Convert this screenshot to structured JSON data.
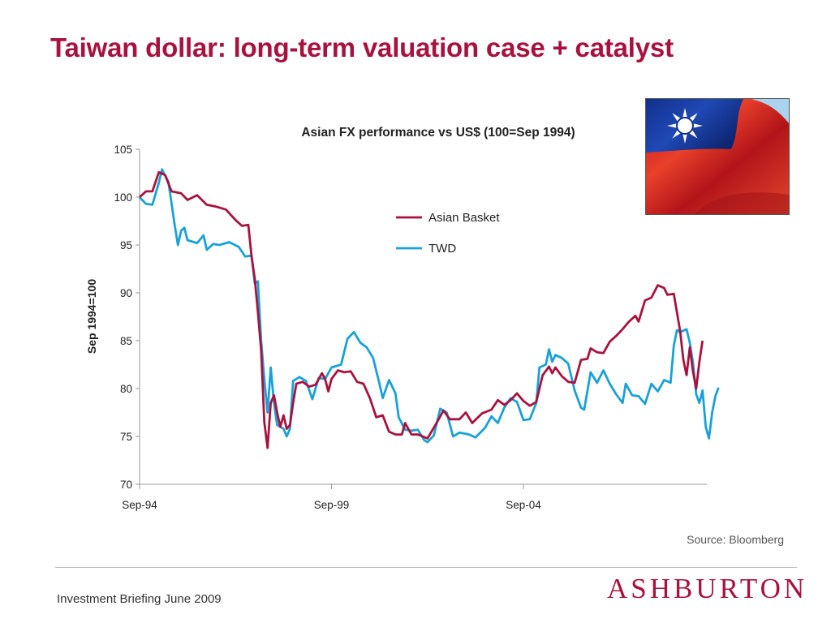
{
  "slide": {
    "title": "Taiwan dollar: long-term valuation case + catalyst",
    "source": "Source: Bloomberg",
    "footer": "Investment Briefing June 2009",
    "logo": "ASHBURTON",
    "accent_color": "#a8123e"
  },
  "flag_image": {
    "icon": "taiwan-flag-icon"
  },
  "chart_data": {
    "type": "line",
    "title": "Asian FX performance vs US$ (100=Sep 1994)",
    "ylabel": "Sep 1994=100",
    "xlabel": "",
    "ylim": [
      70,
      105
    ],
    "yticks": [
      70,
      75,
      80,
      85,
      90,
      95,
      100,
      105
    ],
    "xticks": [
      "Sep-94",
      "Sep-99",
      "Sep-04"
    ],
    "xrange": [
      "1994-09",
      "2009-05"
    ],
    "legend_position": "upper-center",
    "grid": false,
    "series": [
      {
        "name": "Asian Basket",
        "color": "#a8123e",
        "points": [
          [
            "1994-09",
            100
          ],
          [
            "1994-11",
            100.6
          ],
          [
            "1995-01",
            100.6
          ],
          [
            "1995-03",
            102.6
          ],
          [
            "1995-05",
            102.3
          ],
          [
            "1995-07",
            100.6
          ],
          [
            "1995-10",
            100.4
          ],
          [
            "1995-12",
            99.7
          ],
          [
            "1996-03",
            100.2
          ],
          [
            "1996-06",
            99.2
          ],
          [
            "1996-09",
            99.0
          ],
          [
            "1996-12",
            98.7
          ],
          [
            "1997-03",
            97.6
          ],
          [
            "1997-05",
            97.0
          ],
          [
            "1997-07",
            97.1
          ],
          [
            "1997-08",
            93.8
          ],
          [
            "1997-09",
            91.5
          ],
          [
            "1997-10",
            88.0
          ],
          [
            "1997-11",
            84.0
          ],
          [
            "1997-12",
            76.5
          ],
          [
            "1998-01",
            73.8
          ],
          [
            "1998-02",
            78.5
          ],
          [
            "1998-03",
            79.3
          ],
          [
            "1998-04",
            77.5
          ],
          [
            "1998-05",
            76.0
          ],
          [
            "1998-06",
            77.2
          ],
          [
            "1998-07",
            75.8
          ],
          [
            "1998-08",
            76.2
          ],
          [
            "1998-09",
            78.5
          ],
          [
            "1998-10",
            80.5
          ],
          [
            "1998-12",
            80.7
          ],
          [
            "1999-02",
            80.2
          ],
          [
            "1999-04",
            80.4
          ],
          [
            "1999-06",
            81.6
          ],
          [
            "1999-07",
            81.0
          ],
          [
            "1999-08",
            79.7
          ],
          [
            "1999-09",
            81.0
          ],
          [
            "1999-11",
            81.9
          ],
          [
            "2000-01",
            81.7
          ],
          [
            "2000-03",
            81.8
          ],
          [
            "2000-05",
            80.7
          ],
          [
            "2000-07",
            80.5
          ],
          [
            "2000-09",
            79.0
          ],
          [
            "2000-11",
            77.0
          ],
          [
            "2001-01",
            77.2
          ],
          [
            "2001-03",
            75.5
          ],
          [
            "2001-05",
            75.2
          ],
          [
            "2001-07",
            75.2
          ],
          [
            "2001-08",
            76.4
          ],
          [
            "2001-10",
            75.2
          ],
          [
            "2001-12",
            75.2
          ],
          [
            "2002-03",
            74.8
          ],
          [
            "2002-06",
            76.5
          ],
          [
            "2002-08",
            77.7
          ],
          [
            "2002-10",
            76.8
          ],
          [
            "2003-01",
            76.8
          ],
          [
            "2003-03",
            77.5
          ],
          [
            "2003-05",
            76.4
          ],
          [
            "2003-08",
            77.4
          ],
          [
            "2003-11",
            77.8
          ],
          [
            "2004-01",
            78.8
          ],
          [
            "2004-03",
            78.3
          ],
          [
            "2004-05",
            78.8
          ],
          [
            "2004-07",
            79.5
          ],
          [
            "2004-09",
            78.7
          ],
          [
            "2004-11",
            78.2
          ],
          [
            "2005-01",
            78.6
          ],
          [
            "2005-03",
            81.4
          ],
          [
            "2005-05",
            82.3
          ],
          [
            "2005-06",
            81.6
          ],
          [
            "2005-07",
            82.2
          ],
          [
            "2005-09",
            81.3
          ],
          [
            "2005-11",
            80.7
          ],
          [
            "2006-01",
            80.6
          ],
          [
            "2006-03",
            83.0
          ],
          [
            "2006-05",
            83.1
          ],
          [
            "2006-06",
            84.2
          ],
          [
            "2006-08",
            83.8
          ],
          [
            "2006-10",
            83.7
          ],
          [
            "2006-12",
            84.9
          ],
          [
            "2007-02",
            85.5
          ],
          [
            "2007-04",
            86.2
          ],
          [
            "2007-06",
            87.0
          ],
          [
            "2007-08",
            87.6
          ],
          [
            "2007-09",
            87.0
          ],
          [
            "2007-11",
            89.2
          ],
          [
            "2008-01",
            89.5
          ],
          [
            "2008-03",
            90.8
          ],
          [
            "2008-05",
            90.5
          ],
          [
            "2008-06",
            89.8
          ],
          [
            "2008-08",
            89.9
          ],
          [
            "2008-10",
            86.0
          ],
          [
            "2008-11",
            83.0
          ],
          [
            "2008-12",
            81.4
          ],
          [
            "2009-01",
            84.3
          ],
          [
            "2009-02",
            81.8
          ],
          [
            "2009-03",
            80.0
          ],
          [
            "2009-04",
            82.8
          ],
          [
            "2009-05",
            85.0
          ]
        ]
      },
      {
        "name": "TWD",
        "color": "#1aa1d6",
        "points": [
          [
            "1994-09",
            100
          ],
          [
            "1994-11",
            99.3
          ],
          [
            "1995-01",
            99.2
          ],
          [
            "1995-03",
            101.5
          ],
          [
            "1995-04",
            102.9
          ],
          [
            "1995-06",
            101.6
          ],
          [
            "1995-08",
            97.0
          ],
          [
            "1995-09",
            95.0
          ],
          [
            "1995-10",
            96.5
          ],
          [
            "1995-11",
            96.8
          ],
          [
            "1995-12",
            95.5
          ],
          [
            "1996-03",
            95.2
          ],
          [
            "1996-05",
            96.0
          ],
          [
            "1996-06",
            94.5
          ],
          [
            "1996-08",
            95.1
          ],
          [
            "1996-10",
            95.0
          ],
          [
            "1997-01",
            95.3
          ],
          [
            "1997-04",
            94.8
          ],
          [
            "1997-06",
            93.8
          ],
          [
            "1997-08",
            93.9
          ],
          [
            "1997-09",
            91.0
          ],
          [
            "1997-10",
            91.2
          ],
          [
            "1997-11",
            85.0
          ],
          [
            "1997-12",
            81.0
          ],
          [
            "1998-01",
            77.5
          ],
          [
            "1998-02",
            82.2
          ],
          [
            "1998-03",
            78.5
          ],
          [
            "1998-04",
            76.2
          ],
          [
            "1998-06",
            75.8
          ],
          [
            "1998-07",
            75.0
          ],
          [
            "1998-08",
            75.8
          ],
          [
            "1998-09",
            80.8
          ],
          [
            "1998-11",
            81.2
          ],
          [
            "1999-01",
            80.8
          ],
          [
            "1999-03",
            78.9
          ],
          [
            "1999-05",
            81.1
          ],
          [
            "1999-07",
            81.0
          ],
          [
            "1999-09",
            82.2
          ],
          [
            "1999-12",
            82.5
          ],
          [
            "2000-02",
            85.2
          ],
          [
            "2000-04",
            85.9
          ],
          [
            "2000-06",
            84.8
          ],
          [
            "2000-08",
            84.3
          ],
          [
            "2000-10",
            83.2
          ],
          [
            "2000-12",
            80.5
          ],
          [
            "2001-01",
            79.0
          ],
          [
            "2001-03",
            80.9
          ],
          [
            "2001-05",
            79.5
          ],
          [
            "2001-06",
            77.0
          ],
          [
            "2001-08",
            75.7
          ],
          [
            "2001-10",
            75.6
          ],
          [
            "2001-12",
            75.7
          ],
          [
            "2002-02",
            74.6
          ],
          [
            "2002-03",
            74.4
          ],
          [
            "2002-05",
            75.1
          ],
          [
            "2002-07",
            77.9
          ],
          [
            "2002-09",
            77.5
          ],
          [
            "2002-11",
            75.0
          ],
          [
            "2003-01",
            75.4
          ],
          [
            "2003-04",
            75.2
          ],
          [
            "2003-06",
            74.9
          ],
          [
            "2003-09",
            75.9
          ],
          [
            "2003-11",
            77.1
          ],
          [
            "2004-01",
            76.4
          ],
          [
            "2004-03",
            78.0
          ],
          [
            "2004-05",
            79.0
          ],
          [
            "2004-07",
            78.6
          ],
          [
            "2004-09",
            76.7
          ],
          [
            "2004-11",
            76.8
          ],
          [
            "2005-01",
            78.5
          ],
          [
            "2005-02",
            82.2
          ],
          [
            "2005-04",
            82.5
          ],
          [
            "2005-05",
            84.1
          ],
          [
            "2005-06",
            82.8
          ],
          [
            "2005-07",
            83.5
          ],
          [
            "2005-09",
            83.2
          ],
          [
            "2005-11",
            82.6
          ],
          [
            "2006-01",
            79.8
          ],
          [
            "2006-03",
            78.0
          ],
          [
            "2006-04",
            77.8
          ],
          [
            "2006-06",
            81.7
          ],
          [
            "2006-08",
            80.6
          ],
          [
            "2006-10",
            81.9
          ],
          [
            "2006-12",
            80.5
          ],
          [
            "2007-02",
            79.4
          ],
          [
            "2007-04",
            78.5
          ],
          [
            "2007-05",
            80.5
          ],
          [
            "2007-07",
            79.3
          ],
          [
            "2007-09",
            79.2
          ],
          [
            "2007-11",
            78.4
          ],
          [
            "2008-01",
            80.5
          ],
          [
            "2008-03",
            79.7
          ],
          [
            "2008-05",
            80.9
          ],
          [
            "2008-07",
            80.6
          ],
          [
            "2008-08",
            84.5
          ],
          [
            "2008-09",
            86.1
          ],
          [
            "2008-10",
            85.9
          ],
          [
            "2008-12",
            86.2
          ],
          [
            "2009-01",
            84.8
          ],
          [
            "2009-02",
            82.7
          ],
          [
            "2009-03",
            79.4
          ],
          [
            "2009-04",
            78.5
          ],
          [
            "2009-05",
            79.8
          ],
          [
            "2009-06",
            76.0
          ],
          [
            "2009-07",
            74.8
          ],
          [
            "2009-08",
            77.5
          ],
          [
            "2009-09",
            79.2
          ],
          [
            "2009-10",
            80.1
          ]
        ]
      }
    ]
  }
}
